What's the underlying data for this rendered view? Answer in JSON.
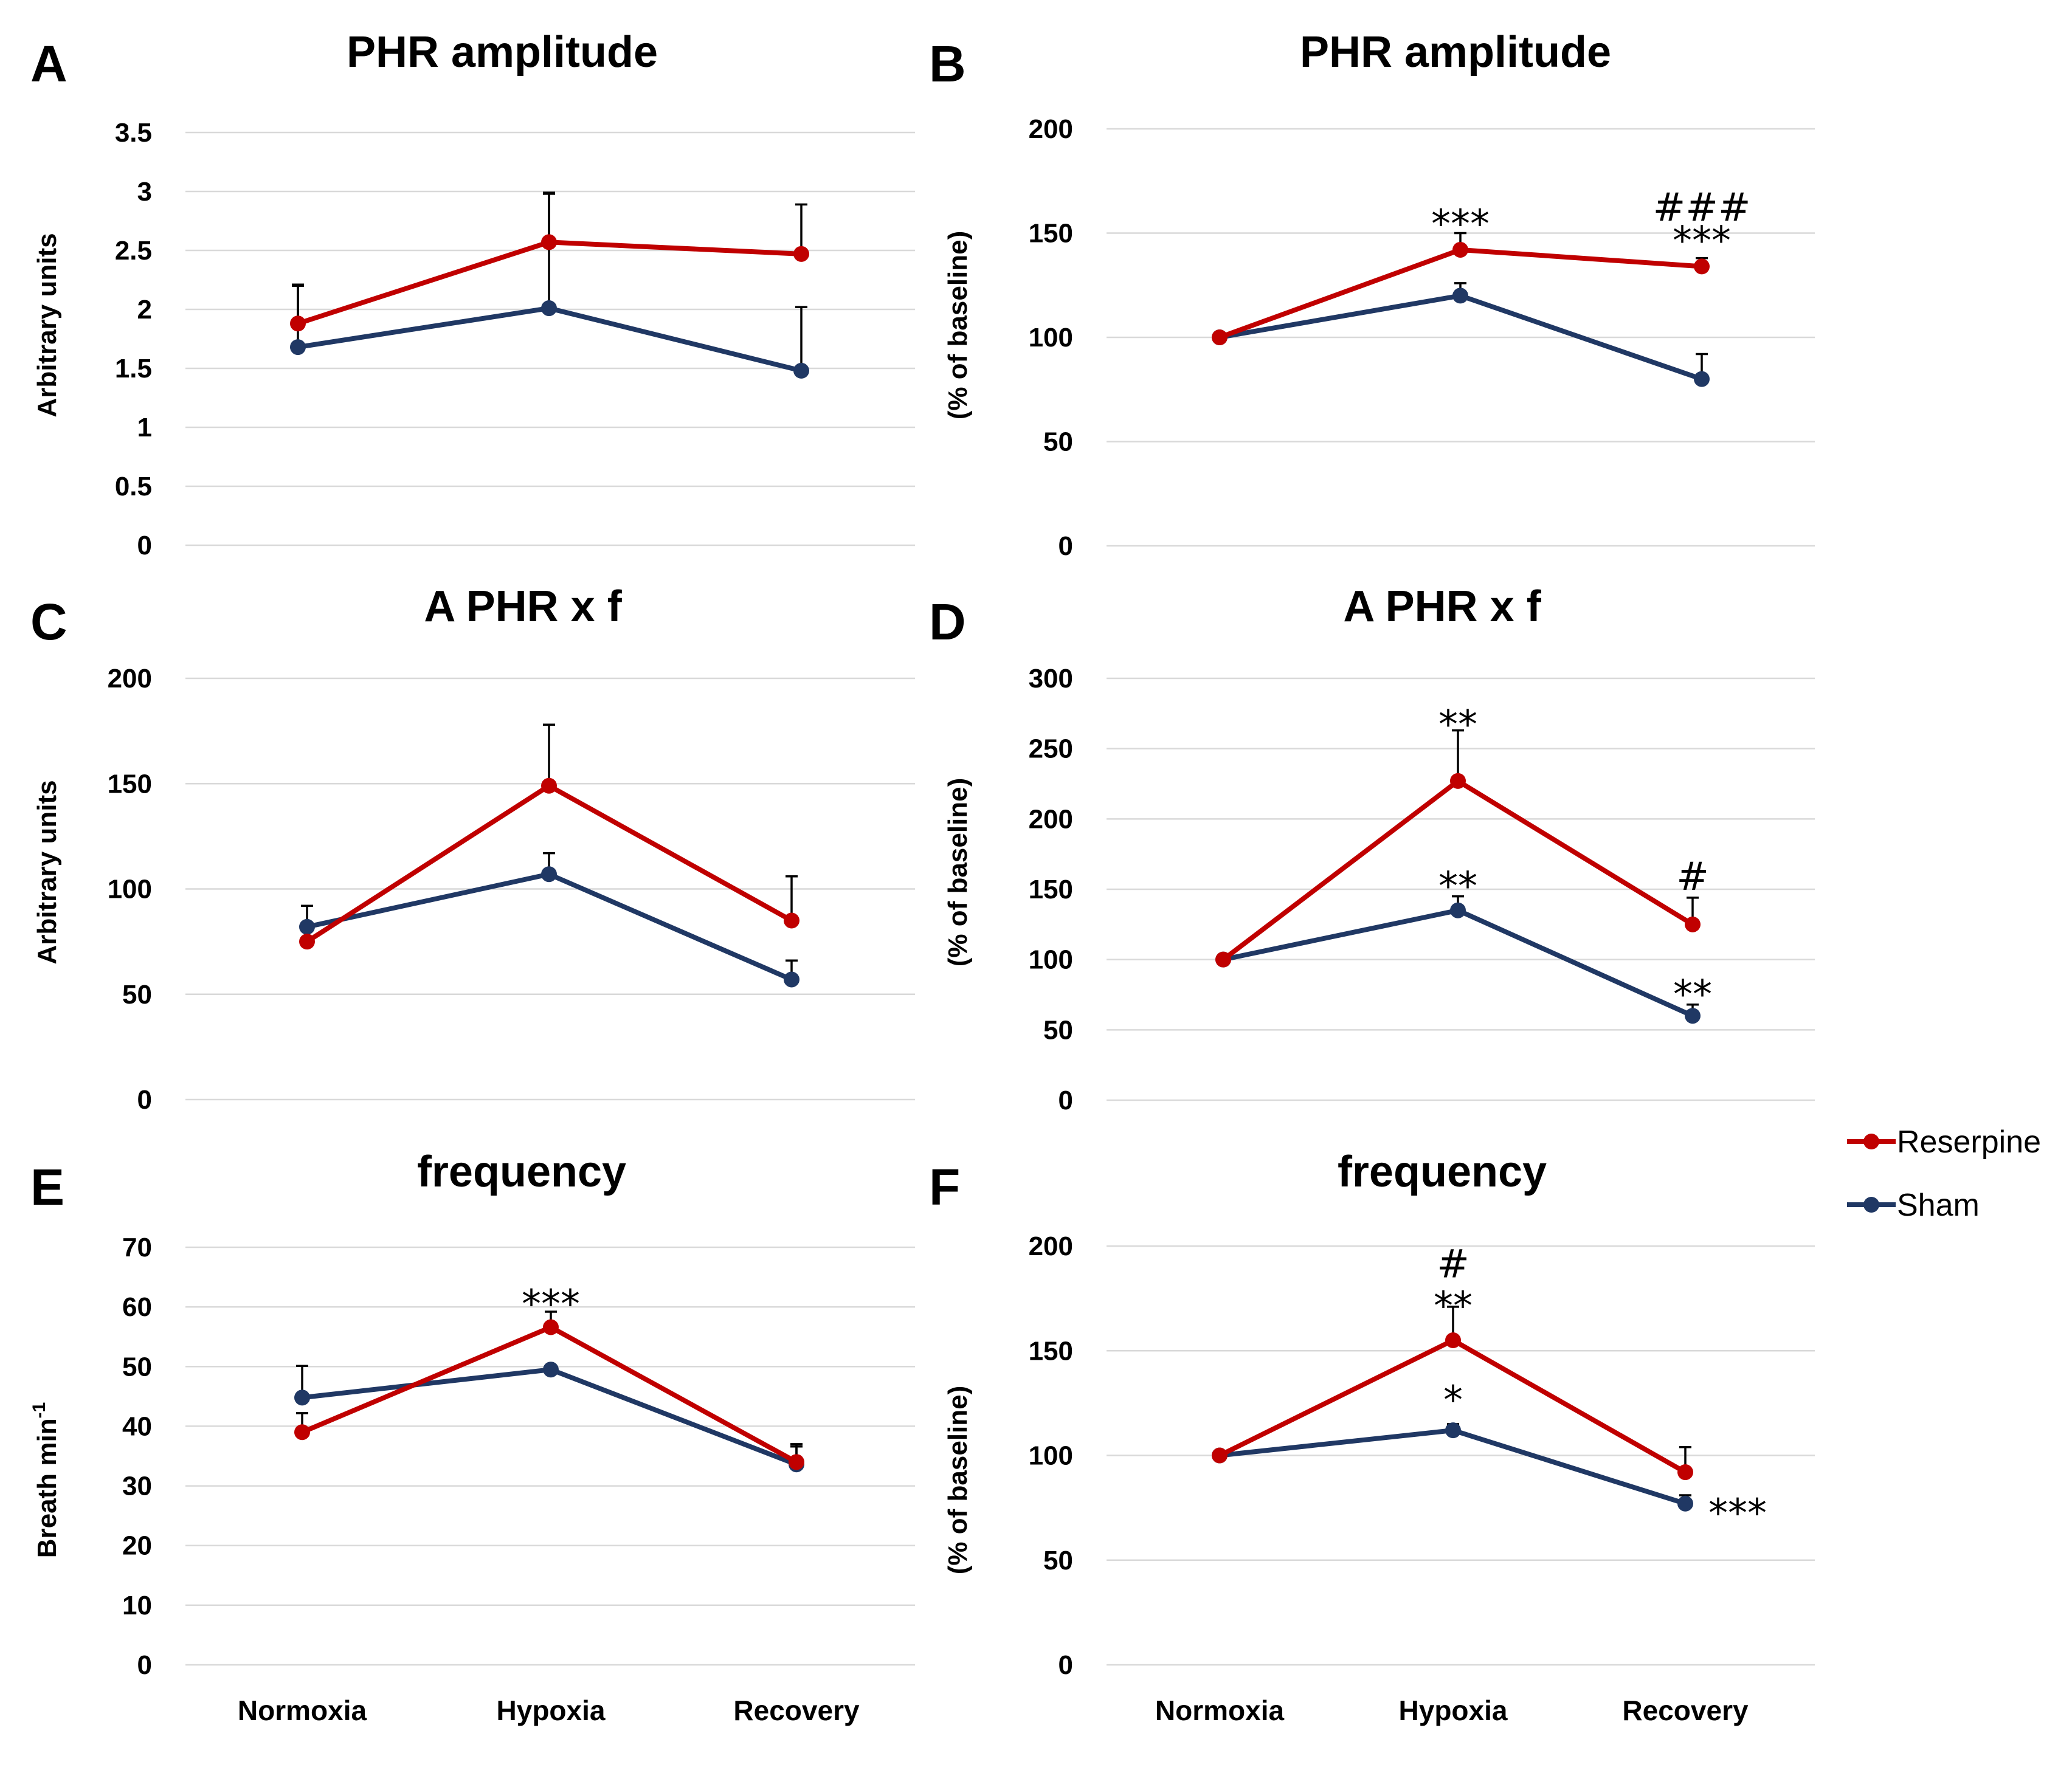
{
  "colors": {
    "reserpine": "#C00000",
    "sham": "#203864",
    "grid": "#D9D9D9",
    "error": "#000000"
  },
  "legend": {
    "items": [
      {
        "name": "Reserpine",
        "color": "#C00000"
      },
      {
        "name": "Sham",
        "color": "#203864"
      }
    ]
  },
  "chart_data": [
    {
      "panel": "A",
      "type": "line",
      "title": "PHR amplitude",
      "ylabel": "Arbitrary units",
      "categories": [
        "Normoxia",
        "Hypoxia",
        "Recovery"
      ],
      "ylim": [
        0,
        3.5
      ],
      "yticks": [
        "0",
        "0.5",
        "1",
        "1.5",
        "2",
        "2.5",
        "3",
        "3.5"
      ],
      "ytick_values": [
        0,
        0.5,
        1,
        1.5,
        2,
        2.5,
        3,
        3.5
      ],
      "show_xticks": false,
      "series": [
        {
          "name": "Reserpine",
          "values": [
            1.88,
            2.57,
            2.47
          ],
          "errors": [
            0.33,
            0.42,
            0.42
          ]
        },
        {
          "name": "Sham",
          "values": [
            1.68,
            2.01,
            1.48
          ],
          "errors": [
            0.52,
            0.97,
            0.54
          ]
        }
      ],
      "annotations": []
    },
    {
      "panel": "B",
      "type": "line",
      "title": "PHR amplitude",
      "ylabel": "(% of baseline)",
      "categories": [
        "Normoxia",
        "Hypoxia",
        "Recovery"
      ],
      "ylim": [
        0,
        200
      ],
      "yticks": [
        "0",
        "50",
        "100",
        "150",
        "200"
      ],
      "ytick_values": [
        0,
        50,
        100,
        150,
        200
      ],
      "show_xticks": false,
      "series": [
        {
          "name": "Reserpine",
          "values": [
            100,
            142,
            134
          ],
          "errors": [
            0,
            8,
            4
          ]
        },
        {
          "name": "Sham",
          "values": [
            100,
            120,
            80
          ],
          "errors": [
            0,
            6,
            12
          ]
        }
      ],
      "annotations": [
        {
          "text": "***",
          "category": 1,
          "value": 155
        },
        {
          "text": "###",
          "category": 2,
          "value": 163
        },
        {
          "text": "***",
          "category": 2,
          "value": 147
        }
      ]
    },
    {
      "panel": "C",
      "type": "line",
      "title": "A PHR x f",
      "ylabel": "Arbitrary units",
      "categories": [
        "Normoxia",
        "Hypoxia",
        "Recovery"
      ],
      "ylim": [
        0,
        200
      ],
      "yticks": [
        "0",
        "50",
        "100",
        "150",
        "200"
      ],
      "ytick_values": [
        0,
        50,
        100,
        150,
        200
      ],
      "show_xticks": false,
      "series": [
        {
          "name": "Reserpine",
          "values": [
            75,
            149,
            85
          ],
          "errors": [
            0,
            29,
            21
          ]
        },
        {
          "name": "Sham",
          "values": [
            82,
            107,
            57
          ],
          "errors": [
            10,
            10,
            9
          ]
        }
      ],
      "annotations": []
    },
    {
      "panel": "D",
      "type": "line",
      "title": "A PHR x f",
      "ylabel": "(% of baseline)",
      "categories": [
        "Normoxia",
        "Hypoxia",
        "Recovery"
      ],
      "ylim": [
        0,
        300
      ],
      "yticks": [
        "0",
        "50",
        "100",
        "150",
        "200",
        "250",
        "300"
      ],
      "ytick_values": [
        0,
        50,
        100,
        150,
        200,
        250,
        300
      ],
      "show_xticks": false,
      "series": [
        {
          "name": "Reserpine",
          "values": [
            100,
            227,
            125
          ],
          "errors": [
            0,
            36,
            19
          ]
        },
        {
          "name": "Sham",
          "values": [
            100,
            135,
            60
          ],
          "errors": [
            0,
            10,
            8
          ]
        }
      ],
      "annotations": [
        {
          "text": "**",
          "category": 1,
          "value": 268
        },
        {
          "text": "**",
          "category": 1,
          "value": 153
        },
        {
          "text": "#",
          "category": 2,
          "value": 160
        },
        {
          "text": "**",
          "category": 2,
          "value": 76
        }
      ]
    },
    {
      "panel": "E",
      "type": "line",
      "title": "frequency",
      "ylabel": "Breath min",
      "ylabel_sup": "-1",
      "categories": [
        "Normoxia",
        "Hypoxia",
        "Recovery"
      ],
      "ylim": [
        0,
        70
      ],
      "yticks": [
        "0",
        "10",
        "20",
        "30",
        "40",
        "50",
        "60",
        "70"
      ],
      "ytick_values": [
        0,
        10,
        20,
        30,
        40,
        50,
        60,
        70
      ],
      "show_xticks": true,
      "series": [
        {
          "name": "Reserpine",
          "values": [
            39,
            56.6,
            34
          ],
          "errors": [
            3.2,
            2.6,
            3.0
          ]
        },
        {
          "name": "Sham",
          "values": [
            44.8,
            49.5,
            33.6
          ],
          "errors": [
            5.3,
            0,
            3.0
          ]
        }
      ],
      "annotations": [
        {
          "text": "***",
          "category": 1,
          "value": 60.7
        }
      ]
    },
    {
      "panel": "F",
      "type": "line",
      "title": "frequency",
      "ylabel": "(% of baseline)",
      "categories": [
        "Normoxia",
        "Hypoxia",
        "Recovery"
      ],
      "ylim": [
        0,
        200
      ],
      "yticks": [
        "0",
        "50",
        "100",
        "150",
        "200"
      ],
      "ytick_values": [
        0,
        50,
        100,
        150,
        200
      ],
      "show_xticks": true,
      "series": [
        {
          "name": "Reserpine",
          "values": [
            100,
            155,
            92
          ],
          "errors": [
            0,
            16,
            12
          ]
        },
        {
          "name": "Sham",
          "values": [
            100,
            112,
            77
          ],
          "errors": [
            0,
            3,
            4
          ]
        }
      ],
      "annotations": [
        {
          "text": "#",
          "category": 1,
          "value": 192
        },
        {
          "text": "**",
          "category": 1,
          "value": 172
        },
        {
          "text": "*",
          "category": 1,
          "value": 127
        },
        {
          "text": "***",
          "category": 2,
          "value": 73,
          "side": "right"
        }
      ]
    }
  ]
}
